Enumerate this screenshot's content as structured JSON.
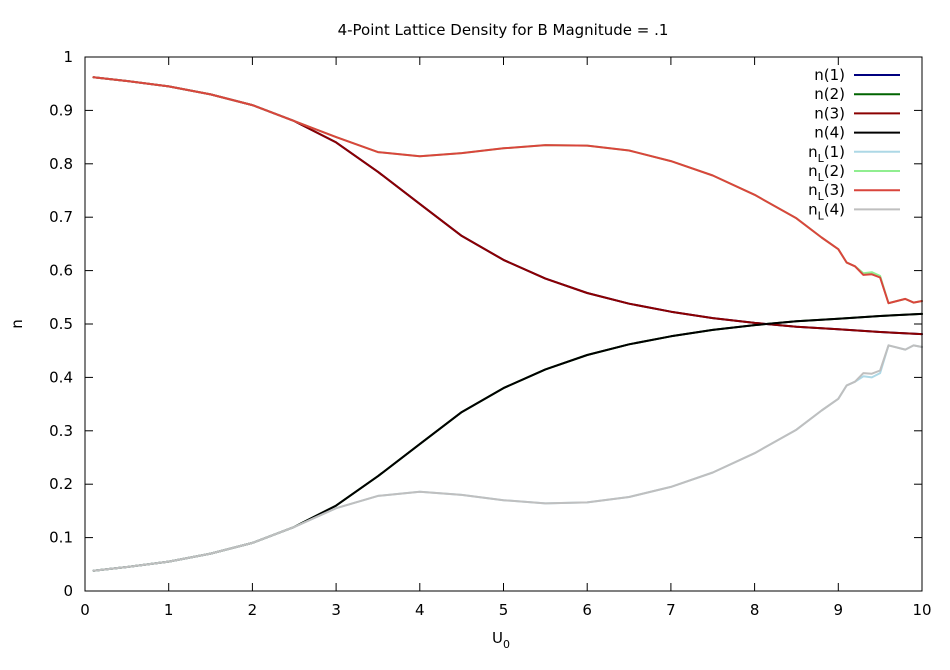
{
  "chart_data": {
    "type": "line",
    "title": "4-Point Lattice Density for B Magnitude = .1",
    "xlabel": {
      "base": "U",
      "sub": "0"
    },
    "ylabel": "n",
    "xlim": [
      0,
      10
    ],
    "ylim": [
      0,
      1
    ],
    "xticks": [
      "0",
      "1",
      "2",
      "3",
      "4",
      "5",
      "6",
      "7",
      "8",
      "9",
      "10"
    ],
    "yticks": [
      "0",
      "0.1",
      "0.2",
      "0.3",
      "0.4",
      "0.5",
      "0.6",
      "0.7",
      "0.8",
      "0.9",
      "1"
    ],
    "grid": false,
    "legend_position": "top-right",
    "series": [
      {
        "name": "n(1)",
        "color": "#00007f",
        "x": [
          0.1,
          0.5,
          1,
          1.5,
          2,
          2.5,
          3,
          3.5,
          4,
          4.5,
          5,
          5.5,
          6,
          6.5,
          7,
          7.5,
          8,
          8.5,
          9,
          9.5,
          10
        ],
        "y": [
          0.962,
          0.955,
          0.945,
          0.93,
          0.91,
          0.88,
          0.84,
          0.785,
          0.725,
          0.665,
          0.62,
          0.585,
          0.558,
          0.538,
          0.523,
          0.511,
          0.502,
          0.495,
          0.49,
          0.485,
          0.481
        ]
      },
      {
        "name": "n(2)",
        "color": "#006400",
        "x": [
          0.1,
          0.5,
          1,
          1.5,
          2,
          2.5,
          3,
          3.5,
          4,
          4.5,
          5,
          5.5,
          6,
          6.5,
          7,
          7.5,
          8,
          8.5,
          9,
          9.5,
          10
        ],
        "y": [
          0.038,
          0.045,
          0.055,
          0.07,
          0.09,
          0.12,
          0.16,
          0.215,
          0.275,
          0.335,
          0.38,
          0.415,
          0.442,
          0.462,
          0.477,
          0.489,
          0.498,
          0.505,
          0.51,
          0.515,
          0.519
        ]
      },
      {
        "name": "n(3)",
        "color": "#8b0000",
        "x": [
          0.1,
          0.5,
          1,
          1.5,
          2,
          2.5,
          3,
          3.5,
          4,
          4.5,
          5,
          5.5,
          6,
          6.5,
          7,
          7.5,
          8,
          8.5,
          9,
          9.5,
          10
        ],
        "y": [
          0.962,
          0.955,
          0.945,
          0.93,
          0.91,
          0.88,
          0.84,
          0.785,
          0.725,
          0.665,
          0.62,
          0.585,
          0.558,
          0.538,
          0.523,
          0.511,
          0.502,
          0.495,
          0.49,
          0.485,
          0.481
        ]
      },
      {
        "name": "n(4)",
        "color": "#000000",
        "x": [
          0.1,
          0.5,
          1,
          1.5,
          2,
          2.5,
          3,
          3.5,
          4,
          4.5,
          5,
          5.5,
          6,
          6.5,
          7,
          7.5,
          8,
          8.5,
          9,
          9.5,
          10
        ],
        "y": [
          0.038,
          0.045,
          0.055,
          0.07,
          0.09,
          0.12,
          0.16,
          0.215,
          0.275,
          0.335,
          0.38,
          0.415,
          0.442,
          0.462,
          0.477,
          0.489,
          0.498,
          0.505,
          0.51,
          0.515,
          0.519
        ]
      },
      {
        "name": "nL(1)",
        "color": "#add8e6",
        "x": [
          0.1,
          0.5,
          1,
          1.5,
          2,
          2.5,
          3,
          3.5,
          4,
          4.5,
          5,
          5.5,
          6,
          6.5,
          7,
          7.5,
          8,
          8.5,
          8.8,
          9,
          9.1,
          9.2,
          9.3,
          9.4,
          9.5,
          9.6,
          9.8,
          9.9,
          10
        ],
        "y": [
          0.038,
          0.045,
          0.055,
          0.07,
          0.09,
          0.12,
          0.155,
          0.178,
          0.186,
          0.18,
          0.17,
          0.164,
          0.166,
          0.176,
          0.195,
          0.222,
          0.258,
          0.302,
          0.338,
          0.36,
          0.385,
          0.392,
          0.402,
          0.4,
          0.408,
          0.46,
          0.452,
          0.46,
          0.457
        ]
      },
      {
        "name": "nL(2)",
        "color": "#90ee90",
        "x": [
          0.1,
          0.5,
          1,
          1.5,
          2,
          2.5,
          3,
          3.5,
          4,
          4.5,
          5,
          5.5,
          6,
          6.5,
          7,
          7.5,
          8,
          8.5,
          8.8,
          9,
          9.1,
          9.2,
          9.3,
          9.4,
          9.5,
          9.6,
          9.8,
          9.9,
          10
        ],
        "y": [
          0.962,
          0.955,
          0.945,
          0.93,
          0.91,
          0.88,
          0.85,
          0.822,
          0.814,
          0.82,
          0.829,
          0.835,
          0.834,
          0.825,
          0.805,
          0.778,
          0.742,
          0.698,
          0.662,
          0.64,
          0.615,
          0.608,
          0.595,
          0.597,
          0.59,
          0.539,
          0.547,
          0.54,
          0.543
        ]
      },
      {
        "name": "nL(3)",
        "color": "#d9453c",
        "x": [
          0.1,
          0.5,
          1,
          1.5,
          2,
          2.5,
          3,
          3.5,
          4,
          4.5,
          5,
          5.5,
          6,
          6.5,
          7,
          7.5,
          8,
          8.5,
          8.8,
          9,
          9.1,
          9.2,
          9.3,
          9.4,
          9.5,
          9.6,
          9.8,
          9.9,
          10
        ],
        "y": [
          0.962,
          0.955,
          0.945,
          0.93,
          0.91,
          0.88,
          0.85,
          0.822,
          0.814,
          0.82,
          0.829,
          0.835,
          0.834,
          0.825,
          0.805,
          0.778,
          0.742,
          0.698,
          0.662,
          0.64,
          0.615,
          0.608,
          0.592,
          0.593,
          0.587,
          0.539,
          0.547,
          0.54,
          0.543
        ]
      },
      {
        "name": "nL(4)",
        "color": "#bfbfbf",
        "x": [
          0.1,
          0.5,
          1,
          1.5,
          2,
          2.5,
          3,
          3.5,
          4,
          4.5,
          5,
          5.5,
          6,
          6.5,
          7,
          7.5,
          8,
          8.5,
          8.8,
          9,
          9.1,
          9.2,
          9.3,
          9.4,
          9.5,
          9.6,
          9.8,
          9.9,
          10
        ],
        "y": [
          0.038,
          0.045,
          0.055,
          0.07,
          0.09,
          0.12,
          0.155,
          0.178,
          0.186,
          0.18,
          0.17,
          0.164,
          0.166,
          0.176,
          0.195,
          0.222,
          0.258,
          0.302,
          0.338,
          0.36,
          0.385,
          0.392,
          0.408,
          0.407,
          0.413,
          0.46,
          0.452,
          0.46,
          0.457
        ]
      }
    ],
    "legend": [
      {
        "base": "n",
        "sub": "",
        "suffix": "(1)",
        "series": 0
      },
      {
        "base": "n",
        "sub": "",
        "suffix": "(2)",
        "series": 1
      },
      {
        "base": "n",
        "sub": "",
        "suffix": "(3)",
        "series": 2
      },
      {
        "base": "n",
        "sub": "",
        "suffix": "(4)",
        "series": 3
      },
      {
        "base": "n",
        "sub": "L",
        "suffix": "(1)",
        "series": 4
      },
      {
        "base": "n",
        "sub": "L",
        "suffix": "(2)",
        "series": 5
      },
      {
        "base": "n",
        "sub": "L",
        "suffix": "(3)",
        "series": 6
      },
      {
        "base": "n",
        "sub": "L",
        "suffix": "(4)",
        "series": 7
      }
    ]
  }
}
